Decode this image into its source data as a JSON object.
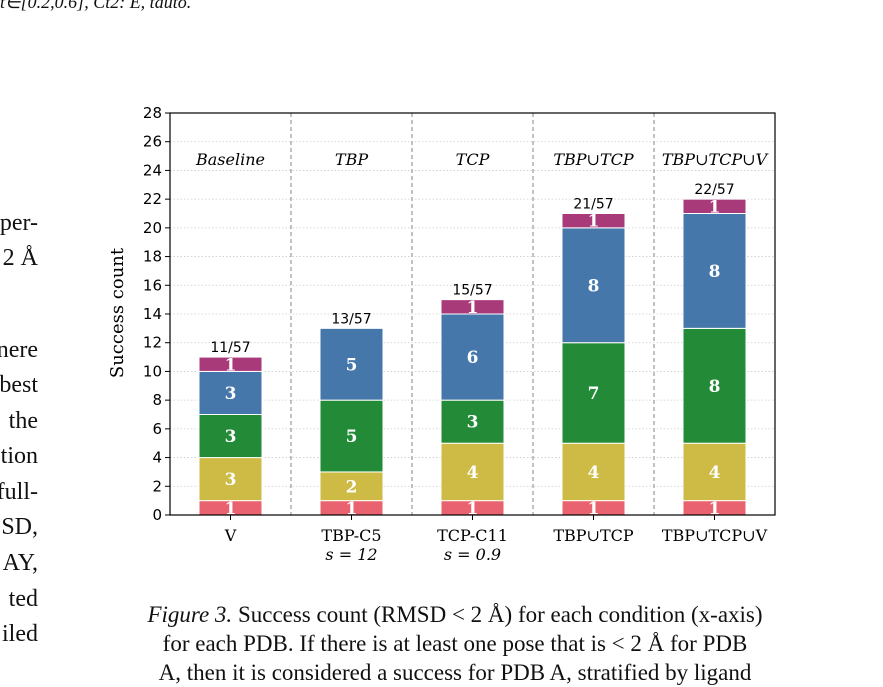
{
  "page_fragments": {
    "top_line": "t∈[0.2,0.6], Ct2: E, tauto.",
    "side_lines": [
      "per-",
      "2 Å",
      "",
      "nere",
      "best",
      "the",
      "tion",
      "full-",
      "SD,",
      "AY,",
      "ted",
      "iled"
    ]
  },
  "caption": {
    "figure_label": "Figure 3.",
    "line1": "Success count (RMSD < 2 Å) for each condition (x-axis)",
    "line2": "for each PDB. If there is at least one pose that is < 2 Å for PDB",
    "line3": "A, then it is considered a success for PDB A, stratified by ligand"
  },
  "chart_data": {
    "type": "bar",
    "stacked": true,
    "title": "",
    "xlabel": "",
    "ylabel": "Success count",
    "ylim": [
      0,
      28
    ],
    "yticks": [
      0,
      2,
      4,
      6,
      8,
      10,
      12,
      14,
      16,
      18,
      20,
      22,
      24,
      26,
      28
    ],
    "grid": true,
    "groups": [
      {
        "header": "Baseline",
        "label": "V",
        "sublabel": "",
        "total_label": "11/57",
        "segments": [
          1,
          3,
          3,
          3,
          1
        ]
      },
      {
        "header": "TBP",
        "label": "TBP-C5",
        "sublabel": "s = 12",
        "total_label": "13/57",
        "segments": [
          1,
          2,
          5,
          5,
          0
        ]
      },
      {
        "header": "TCP",
        "label": "TCP-C11",
        "sublabel": "s = 0.9",
        "total_label": "15/57",
        "segments": [
          1,
          4,
          3,
          6,
          1
        ]
      },
      {
        "header": "TBP∪TCP",
        "label": "TBP∪TCP",
        "sublabel": "",
        "total_label": "21/57",
        "segments": [
          1,
          4,
          7,
          8,
          1
        ]
      },
      {
        "header": "TBP∪TCP∪V",
        "label": "TBP∪TCP∪V",
        "sublabel": "",
        "total_label": "22/57",
        "segments": [
          1,
          4,
          8,
          8,
          1
        ]
      }
    ],
    "segment_colors": [
      "#e8636f",
      "#cdbb45",
      "#238b37",
      "#4677aa",
      "#a93a7a"
    ]
  }
}
